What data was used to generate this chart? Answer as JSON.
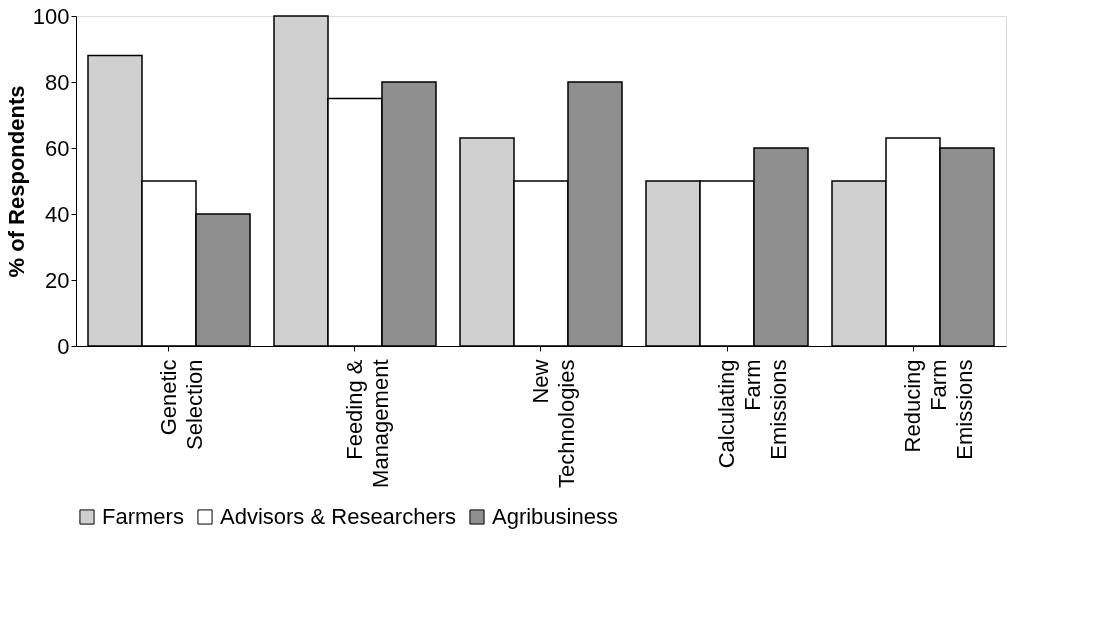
{
  "chart_data": {
    "type": "bar",
    "ylabel": "% of Respondents",
    "categories": [
      "Genetic\nSelection",
      "Feeding &\nManagement",
      "New\nTechnologies",
      "Calculating\nFarm\nEmissions",
      "Reducing\nFarm\nEmissions"
    ],
    "series": [
      {
        "name": "Farmers",
        "color": "#d0d0d0",
        "values": [
          88,
          100,
          63,
          50,
          50
        ]
      },
      {
        "name": "Advisors & Researchers",
        "color": "#ffffff",
        "values": [
          50,
          75,
          50,
          50,
          63
        ]
      },
      {
        "name": "Agribusiness",
        "color": "#8f8f8f",
        "values": [
          40,
          80,
          80,
          60,
          60
        ]
      }
    ],
    "ylim": [
      0,
      100
    ],
    "yticks": [
      0,
      20,
      40,
      60,
      80,
      100
    ],
    "grid": false,
    "legend": "bottom"
  }
}
